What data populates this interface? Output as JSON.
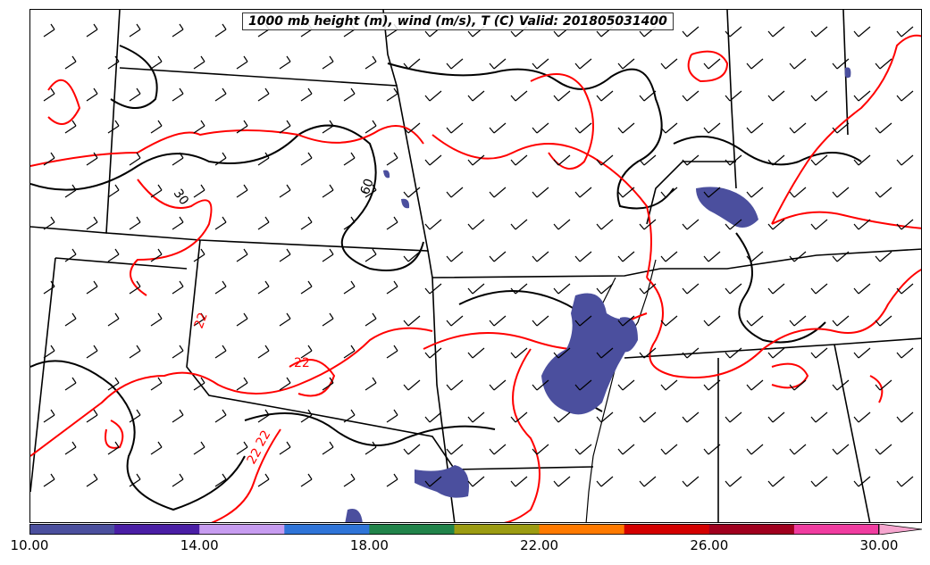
{
  "title": "1000 mb height (m), wind (m/s), T (C) Valid: 201805031400",
  "contour_labels": {
    "height": [
      "30",
      "60"
    ],
    "temperature": [
      "22",
      "22",
      "22",
      "22"
    ]
  },
  "colors": {
    "height_contour": "#000000",
    "temperature_contour": "#ff0000",
    "borders": "#000000",
    "shading": "#4b4f9e"
  },
  "colorbar": {
    "segments": [
      "#4b4f9e",
      "#4a1ea5",
      "#c79cf0",
      "#2f74d8",
      "#21844a",
      "#9c9c12",
      "#ff7a00",
      "#d40000",
      "#a0001e",
      "#f03da0"
    ],
    "arrow_color": "#f6a6cf",
    "tick_labels": [
      "10.00",
      "14.00",
      "18.00",
      "22.00",
      "26.00",
      "30.00"
    ]
  }
}
